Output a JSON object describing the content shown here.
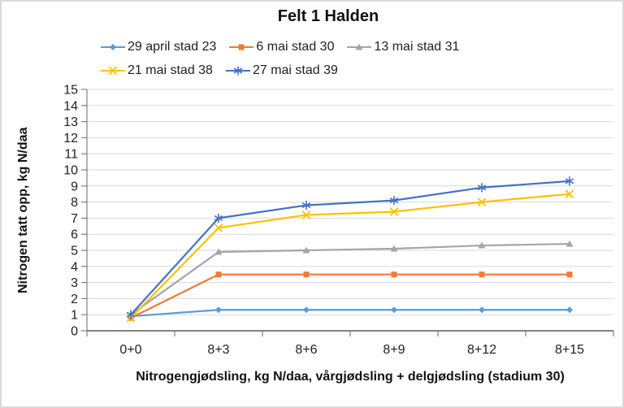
{
  "chart_data": {
    "type": "line",
    "title": "Felt 1 Halden",
    "xlabel": "Nitrogengjødsling, kg N/daa, vårgjødsling + delgjødsling (stadium 30)",
    "ylabel": "Nitrogen tatt opp, kg N/daa",
    "categories": [
      "0+0",
      "8+3",
      "8+6",
      "8+9",
      "8+12",
      "8+15"
    ],
    "series": [
      {
        "name": "29 april stad 23",
        "color": "#5B9BD5",
        "marker": "diamond",
        "values": [
          0.9,
          1.3,
          1.3,
          1.3,
          1.3,
          1.3
        ]
      },
      {
        "name": "6 mai stad 30",
        "color": "#ED7D31",
        "marker": "square",
        "values": [
          0.8,
          3.5,
          3.5,
          3.5,
          3.5,
          3.5
        ]
      },
      {
        "name": "13 mai stad 31",
        "color": "#A5A5A5",
        "marker": "triangle",
        "values": [
          1.0,
          4.9,
          5.0,
          5.1,
          5.3,
          5.4
        ]
      },
      {
        "name": "21 mai stad 38",
        "color": "#FFC000",
        "marker": "x",
        "values": [
          0.8,
          6.4,
          7.2,
          7.4,
          8.0,
          8.5
        ]
      },
      {
        "name": "27 mai stad 39",
        "color": "#4472C4",
        "marker": "asterisk",
        "values": [
          1.0,
          7.0,
          7.8,
          8.1,
          8.9,
          9.3
        ]
      }
    ],
    "ylim": [
      0,
      15
    ],
    "ytick_step": 1,
    "grid": true,
    "legend_position": "top",
    "colors": {
      "gridline": "#D9D9D9",
      "axis": "#808080",
      "text": "#1f1f1f",
      "border": "#D9D9D9"
    }
  }
}
